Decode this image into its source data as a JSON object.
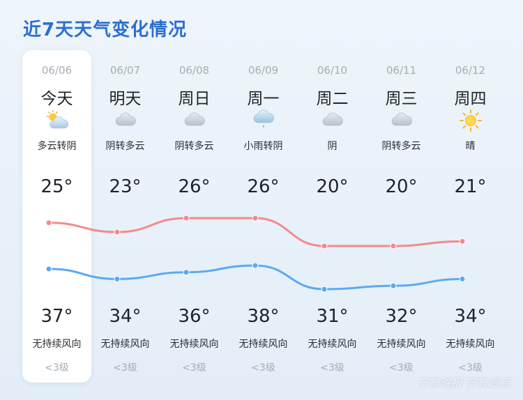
{
  "title": "近7天天气变化情况",
  "days": [
    {
      "date": "06/06",
      "day": "今天",
      "icon": "partly-cloudy-icon",
      "condition": "多云转阴",
      "low": "25°",
      "high": "37°",
      "wind": "无持续风向",
      "level": "<3级"
    },
    {
      "date": "06/07",
      "day": "明天",
      "icon": "cloud-icon",
      "condition": "阴转多云",
      "low": "23°",
      "high": "34°",
      "wind": "无持续风向",
      "level": "<3级"
    },
    {
      "date": "06/08",
      "day": "周日",
      "icon": "cloud-icon",
      "condition": "阴转多云",
      "low": "26°",
      "high": "36°",
      "wind": "无持续风向",
      "level": "<3级"
    },
    {
      "date": "06/09",
      "day": "周一",
      "icon": "light-rain-icon",
      "condition": "小雨转阴",
      "low": "26°",
      "high": "38°",
      "wind": "无持续风向",
      "level": "<3级"
    },
    {
      "date": "06/10",
      "day": "周二",
      "icon": "cloud-icon",
      "condition": "阴",
      "low": "20°",
      "high": "31°",
      "wind": "无持续风向",
      "level": "<3级"
    },
    {
      "date": "06/11",
      "day": "周三",
      "icon": "cloud-icon",
      "condition": "阴转多云",
      "low": "20°",
      "high": "32°",
      "wind": "无持续风向",
      "level": "<3级"
    },
    {
      "date": "06/12",
      "day": "周四",
      "icon": "sun-icon",
      "condition": "晴",
      "low": "21°",
      "high": "34°",
      "wind": "无持续风向",
      "level": "<3级"
    }
  ],
  "lines": {
    "low_values": [
      25,
      23,
      26,
      26,
      20,
      20,
      21
    ],
    "high_values": [
      37,
      34,
      36,
      38,
      31,
      32,
      34
    ],
    "low_color": "#f28b8b",
    "high_color": "#5aaaf0"
  },
  "watermark": "齐鲁晚报 齐鲁壹点"
}
